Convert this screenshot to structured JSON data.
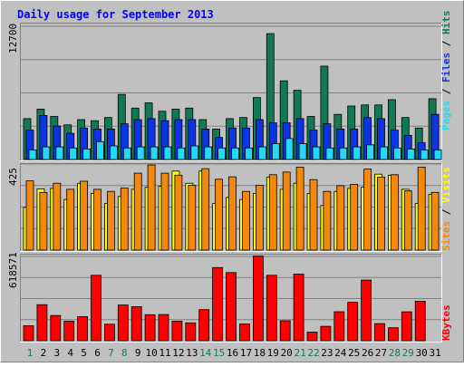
{
  "chart_data": [
    {
      "type": "bar",
      "title": "Daily usage for September 2013",
      "categories": [
        "1",
        "2",
        "3",
        "4",
        "5",
        "6",
        "7",
        "8",
        "9",
        "10",
        "11",
        "12",
        "13",
        "14",
        "15",
        "16",
        "17",
        "18",
        "19",
        "20",
        "21",
        "22",
        "23",
        "24",
        "25",
        "26",
        "27",
        "28",
        "29",
        "30",
        "31"
      ],
      "weekend_days": [
        1,
        7,
        8,
        14,
        15,
        21,
        22,
        28,
        29
      ],
      "ylim": [
        0,
        12700
      ],
      "y_tick_label": "12700",
      "side_labels": [
        "Pages",
        "Files",
        "Hits"
      ],
      "colors": {
        "hits": "#117a55",
        "files": "#0b34e6",
        "pages": "#25d8f5"
      },
      "series": [
        {
          "name": "Hits",
          "values": [
            3900,
            4800,
            4100,
            3300,
            3800,
            3700,
            4000,
            6200,
            4900,
            5400,
            4600,
            4800,
            4900,
            3800,
            2900,
            3900,
            4000,
            5900,
            12000,
            7500,
            6600,
            4100,
            8900,
            4300,
            5100,
            5200,
            5200,
            5700,
            4000,
            3000,
            5800
          ]
        },
        {
          "name": "Files",
          "values": [
            2800,
            4200,
            3200,
            2500,
            3000,
            2900,
            2900,
            3400,
            3800,
            3900,
            3700,
            3800,
            3800,
            2900,
            2100,
            3000,
            3000,
            3800,
            3500,
            3500,
            3900,
            2800,
            3400,
            2900,
            2900,
            4000,
            3900,
            2800,
            2300,
            1600,
            4300
          ]
        },
        {
          "name": "Pages",
          "values": [
            900,
            1200,
            1200,
            1100,
            1000,
            1700,
            1300,
            1100,
            1200,
            1200,
            1200,
            1100,
            1300,
            1200,
            1100,
            1100,
            1100,
            1200,
            1500,
            2000,
            1500,
            1200,
            1100,
            1100,
            1200,
            1400,
            1200,
            1100,
            1000,
            900,
            900
          ]
        }
      ]
    },
    {
      "type": "bar",
      "categories": [
        "1",
        "2",
        "3",
        "4",
        "5",
        "6",
        "7",
        "8",
        "9",
        "10",
        "11",
        "12",
        "13",
        "14",
        "15",
        "16",
        "17",
        "18",
        "19",
        "20",
        "21",
        "22",
        "23",
        "24",
        "25",
        "26",
        "27",
        "28",
        "29",
        "30",
        "31"
      ],
      "ylim": [
        0,
        425
      ],
      "y_tick_label": "425",
      "side_labels": [
        "Sites",
        "Visits"
      ],
      "colors": {
        "visits": "#f3880e",
        "sites": "#ffff00"
      },
      "series": [
        {
          "name": "Visits",
          "values": [
            342,
            285,
            330,
            300,
            340,
            300,
            290,
            306,
            380,
            420,
            380,
            370,
            320,
            402,
            350,
            362,
            290,
            320,
            372,
            385,
            410,
            348,
            290,
            318,
            325,
            400,
            360,
            372,
            292,
            410,
            285
          ]
        },
        {
          "name": "Sites",
          "values": [
            211,
            302,
            305,
            250,
            330,
            280,
            230,
            265,
            300,
            310,
            315,
            390,
            330,
            390,
            230,
            260,
            250,
            280,
            360,
            300,
            330,
            280,
            220,
            290,
            305,
            310,
            375,
            370,
            300,
            230,
            275
          ]
        }
      ]
    },
    {
      "type": "bar",
      "categories": [
        "1",
        "2",
        "3",
        "4",
        "5",
        "6",
        "7",
        "8",
        "9",
        "10",
        "11",
        "12",
        "13",
        "14",
        "15",
        "16",
        "17",
        "18",
        "19",
        "20",
        "21",
        "22",
        "23",
        "24",
        "25",
        "26",
        "27",
        "28",
        "29",
        "30",
        "31"
      ],
      "ylim": [
        0,
        618571
      ],
      "y_tick_label": "618571",
      "side_labels": [
        "KBytes"
      ],
      "colors": {
        "kbytes": "#ff0000"
      },
      "series": [
        {
          "name": "KBytes",
          "values": [
            110000,
            265000,
            185000,
            143000,
            177000,
            480000,
            121000,
            262000,
            250000,
            191000,
            192000,
            144000,
            131000,
            228000,
            537000,
            500000,
            123000,
            622000,
            480000,
            146000,
            489000,
            63000,
            106000,
            213000,
            282000,
            445000,
            126000,
            95000,
            212000,
            290000,
            0
          ]
        }
      ]
    }
  ]
}
